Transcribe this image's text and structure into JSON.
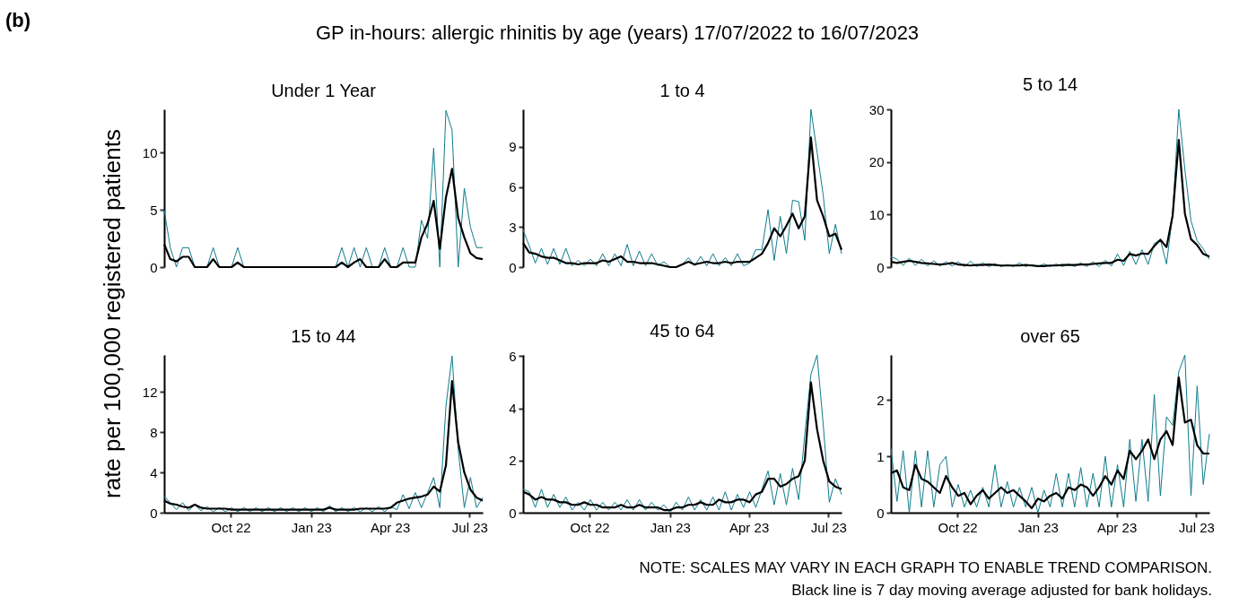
{
  "chart_data": [
    {
      "type": "line",
      "title": "Under 1 Year",
      "ylabel": "rate per 100,000 registered patients",
      "annotations": [
        "(b)",
        "GP in-hours: allergic rhinitis by age (years) 17/07/2022 to 16/07/2023"
      ],
      "tick_labels": "y",
      "ylim": [
        0,
        13.8
      ],
      "yticks": [
        0,
        5,
        10
      ],
      "categories": [
        null,
        null,
        null,
        null,
        null,
        null,
        null,
        null,
        null,
        null,
        null,
        null,
        null,
        null,
        null,
        null,
        null,
        null,
        null,
        null,
        null,
        null,
        null,
        null,
        null,
        null,
        null,
        null,
        null,
        null,
        null,
        null,
        null,
        null,
        null,
        null,
        null,
        null,
        null,
        null,
        null,
        null,
        null,
        null,
        null,
        null,
        null,
        null,
        null,
        null,
        null,
        null,
        null
      ],
      "series": [
        {
          "color": "#0e7c8c",
          "values": [
            5.0,
            1.7,
            0,
            1.7,
            1.7,
            0,
            0,
            0,
            1.7,
            0,
            0,
            0,
            1.7,
            0,
            0,
            0,
            0,
            0,
            0,
            0,
            0,
            0,
            0,
            0,
            0,
            0,
            0,
            0,
            0,
            1.7,
            0,
            1.7,
            0,
            1.7,
            0,
            0,
            1.7,
            0,
            0,
            1.7,
            0,
            0,
            4.1,
            2.5,
            10.4,
            0,
            13.7,
            12.0,
            0,
            6.9,
            3.5,
            1.7,
            1.7
          ]
        },
        {
          "color": "#000000",
          "values": [
            2.0,
            0.7,
            0.5,
            0.9,
            0.9,
            0,
            0,
            0,
            0.7,
            0,
            0,
            0,
            0.4,
            0,
            0,
            0,
            0,
            0,
            0,
            0,
            0,
            0,
            0,
            0,
            0,
            0,
            0,
            0,
            0,
            0.4,
            0,
            0.4,
            0.7,
            0,
            0,
            0,
            0.7,
            0,
            0,
            0.4,
            0.4,
            0.4,
            2.6,
            3.8,
            5.8,
            1.6,
            6.1,
            8.6,
            4.3,
            2.6,
            1.2,
            0.8,
            0.7
          ]
        }
      ]
    },
    {
      "type": "line",
      "title": "1 to 4",
      "tick_labels": "y",
      "ylim": [
        0,
        11.8
      ],
      "yticks": [
        0,
        3,
        6,
        9
      ],
      "categories": [
        null,
        null,
        null,
        null,
        null,
        null,
        null,
        null,
        null,
        null,
        null,
        null,
        null,
        null,
        null,
        null,
        null,
        null,
        null,
        null,
        null,
        null,
        null,
        null,
        null,
        null,
        null,
        null,
        null,
        null,
        null,
        null,
        null,
        null,
        null,
        null,
        null,
        null,
        null,
        null,
        null,
        null,
        null,
        null,
        null,
        null,
        null,
        null,
        null,
        null,
        null,
        null,
        null
      ],
      "series": [
        {
          "color": "#0e7c8c",
          "values": [
            2.8,
            1.6,
            0.3,
            1.4,
            0.2,
            1.4,
            0.2,
            1.4,
            0.1,
            0.5,
            0.1,
            0.6,
            0.1,
            1.0,
            0.1,
            1.0,
            0.1,
            1.7,
            0.1,
            1.2,
            0.1,
            1.0,
            0.1,
            0.4,
            0,
            0,
            0.2,
            0.7,
            0.1,
            0.8,
            0.1,
            1.0,
            0.1,
            0.7,
            0.1,
            1.0,
            0.1,
            0.3,
            1.3,
            1.3,
            4.3,
            0.5,
            3.8,
            1.0,
            5.0,
            4.9,
            2.0,
            11.8,
            8.6,
            5.4,
            1.0,
            3.2,
            1.0
          ]
        },
        {
          "color": "#000000",
          "values": [
            1.8,
            1.1,
            1.0,
            0.8,
            0.7,
            0.7,
            0.5,
            0.3,
            0.3,
            0.2,
            0.3,
            0.3,
            0.3,
            0.5,
            0.4,
            0.6,
            0.8,
            0.4,
            0.4,
            0.3,
            0.3,
            0.3,
            0.2,
            0.1,
            0,
            0,
            0.2,
            0.4,
            0.2,
            0.3,
            0.4,
            0.3,
            0.3,
            0.4,
            0.3,
            0.4,
            0.4,
            0.4,
            0.7,
            1.0,
            1.8,
            2.9,
            2.3,
            3.1,
            4.0,
            2.9,
            3.8,
            9.7,
            5.0,
            3.8,
            2.3,
            2.5,
            1.3
          ]
        }
      ]
    },
    {
      "type": "line",
      "title": "5 to 14",
      "tick_labels": "y",
      "ylim": [
        0,
        30
      ],
      "yticks": [
        0,
        10,
        20,
        30
      ],
      "categories": [
        null,
        null,
        null,
        null,
        null,
        null,
        null,
        null,
        null,
        null,
        null,
        null,
        null,
        null,
        null,
        null,
        null,
        null,
        null,
        null,
        null,
        null,
        null,
        null,
        null,
        null,
        null,
        null,
        null,
        null,
        null,
        null,
        null,
        null,
        null,
        null,
        null,
        null,
        null,
        null,
        null,
        null,
        null,
        null,
        null,
        null,
        null,
        null,
        null,
        null,
        null,
        null,
        null
      ],
      "series": [
        {
          "color": "#0e7c8c",
          "values": [
            2.0,
            1.5,
            0.3,
            1.7,
            0.3,
            1.5,
            0.2,
            1.2,
            0.2,
            1.0,
            0.2,
            1.0,
            0.1,
            1.1,
            0.1,
            0.8,
            0.1,
            0.6,
            0.1,
            0.5,
            0.1,
            0.8,
            0.1,
            0.5,
            0.1,
            0.6,
            0.1,
            0.6,
            0.1,
            0.6,
            0.1,
            0.8,
            0.1,
            1.0,
            0.1,
            1.3,
            0.2,
            2.5,
            0.3,
            3.0,
            0.5,
            3.3,
            0.5,
            4.5,
            5.2,
            0.6,
            10.0,
            30.0,
            18.5,
            8.8,
            5.0,
            3.5,
            1.5
          ]
        },
        {
          "color": "#000000",
          "values": [
            1.0,
            0.8,
            1.0,
            1.2,
            1.0,
            0.8,
            0.7,
            0.6,
            0.5,
            0.6,
            0.8,
            0.5,
            0.4,
            0.3,
            0.4,
            0.4,
            0.5,
            0.4,
            0.3,
            0.3,
            0.3,
            0.3,
            0.4,
            0.3,
            0.2,
            0.2,
            0.3,
            0.3,
            0.4,
            0.4,
            0.4,
            0.5,
            0.5,
            0.6,
            0.7,
            0.8,
            0.8,
            1.4,
            1.2,
            2.5,
            2.2,
            2.6,
            2.5,
            4.0,
            5.2,
            3.8,
            9.8,
            24.2,
            10.2,
            5.3,
            4.2,
            2.5,
            2.0
          ]
        }
      ]
    },
    {
      "type": "line",
      "title": "15 to 44",
      "xlim": [
        "2022-07-17",
        "2023-07-16"
      ],
      "ylim": [
        0,
        15.7
      ],
      "yticks": [
        0,
        4,
        8,
        12
      ],
      "xticks": [
        {
          "value": "2022-10-01",
          "label": "Oct 22"
        },
        {
          "value": "2023-01-01",
          "label": "Jan 23"
        },
        {
          "value": "2023-04-01",
          "label": "Apr 23"
        },
        {
          "value": "2023-07-01",
          "label": "Jul 23"
        }
      ],
      "x": [
        "2022-07-17",
        "2022-07-24",
        "2022-07-31",
        "2022-08-07",
        "2022-08-14",
        "2022-08-21",
        "2022-08-28",
        "2022-09-04",
        "2022-09-11",
        "2022-09-18",
        "2022-09-25",
        "2022-10-02",
        "2022-10-09",
        "2022-10-16",
        "2022-10-23",
        "2022-10-30",
        "2022-11-06",
        "2022-11-13",
        "2022-11-20",
        "2022-11-27",
        "2022-12-04",
        "2022-12-11",
        "2022-12-18",
        "2022-12-25",
        "2023-01-01",
        "2023-01-08",
        "2023-01-15",
        "2023-01-22",
        "2023-01-29",
        "2023-02-05",
        "2023-02-12",
        "2023-02-19",
        "2023-02-26",
        "2023-03-05",
        "2023-03-12",
        "2023-03-19",
        "2023-03-26",
        "2023-04-02",
        "2023-04-09",
        "2023-04-16",
        "2023-04-23",
        "2023-04-30",
        "2023-05-07",
        "2023-05-14",
        "2023-05-21",
        "2023-05-28",
        "2023-06-04",
        "2023-06-11",
        "2023-06-18",
        "2023-06-25",
        "2023-07-02",
        "2023-07-09",
        "2023-07-16"
      ],
      "series": [
        {
          "color": "#0e7c8c",
          "values": [
            1.6,
            1.0,
            0.3,
            1.0,
            0.2,
            0.8,
            0.2,
            0.6,
            0.1,
            0.5,
            0.1,
            0.5,
            0.1,
            0.5,
            0.1,
            0.5,
            0.1,
            0.5,
            0.1,
            0.5,
            0.1,
            0.5,
            0.1,
            0.5,
            0.1,
            0.5,
            0.1,
            0.7,
            0.1,
            0.5,
            0.1,
            0.5,
            0.1,
            0.5,
            0.1,
            0.6,
            0.1,
            0.6,
            0.3,
            1.8,
            0.4,
            2.0,
            0.5,
            2.0,
            3.5,
            0.5,
            10.6,
            15.6,
            6.3,
            0.5,
            3.5,
            0.5,
            1.5
          ]
        },
        {
          "color": "#000000",
          "values": [
            1.2,
            0.9,
            0.8,
            0.6,
            0.5,
            0.8,
            0.5,
            0.4,
            0.4,
            0.4,
            0.4,
            0.3,
            0.3,
            0.3,
            0.3,
            0.3,
            0.3,
            0.3,
            0.3,
            0.3,
            0.3,
            0.3,
            0.3,
            0.3,
            0.3,
            0.3,
            0.3,
            0.5,
            0.3,
            0.3,
            0.3,
            0.3,
            0.4,
            0.4,
            0.4,
            0.4,
            0.4,
            0.5,
            1.0,
            1.2,
            1.4,
            1.5,
            1.6,
            1.8,
            2.6,
            2.1,
            4.7,
            13.1,
            7.0,
            4.0,
            2.3,
            1.5,
            1.2
          ]
        }
      ]
    },
    {
      "type": "line",
      "title": "45 to 64",
      "xlim": [
        "2022-07-17",
        "2023-07-16"
      ],
      "ylim": [
        0,
        6.05
      ],
      "yticks": [
        0,
        2,
        4,
        6
      ],
      "xticks": [
        {
          "value": "2022-10-01",
          "label": "Oct 22"
        },
        {
          "value": "2023-01-01",
          "label": "Jan 23"
        },
        {
          "value": "2023-04-01",
          "label": "Apr 23"
        },
        {
          "value": "2023-07-01",
          "label": "Jul 23"
        }
      ],
      "x": [
        "2022-07-17",
        "2022-07-24",
        "2022-07-31",
        "2022-08-07",
        "2022-08-14",
        "2022-08-21",
        "2022-08-28",
        "2022-09-04",
        "2022-09-11",
        "2022-09-18",
        "2022-09-25",
        "2022-10-02",
        "2022-10-09",
        "2022-10-16",
        "2022-10-23",
        "2022-10-30",
        "2022-11-06",
        "2022-11-13",
        "2022-11-20",
        "2022-11-27",
        "2022-12-04",
        "2022-12-11",
        "2022-12-18",
        "2022-12-25",
        "2023-01-01",
        "2023-01-08",
        "2023-01-15",
        "2023-01-22",
        "2023-01-29",
        "2023-02-05",
        "2023-02-12",
        "2023-02-19",
        "2023-02-26",
        "2023-03-05",
        "2023-03-12",
        "2023-03-19",
        "2023-03-26",
        "2023-04-02",
        "2023-04-09",
        "2023-04-16",
        "2023-04-23",
        "2023-04-30",
        "2023-05-07",
        "2023-05-14",
        "2023-05-21",
        "2023-05-28",
        "2023-06-04",
        "2023-06-11",
        "2023-06-18",
        "2023-06-25",
        "2023-07-02",
        "2023-07-09",
        "2023-07-16"
      ],
      "series": [
        {
          "color": "#0e7c8c",
          "values": [
            0.9,
            0.8,
            0.2,
            0.9,
            0.2,
            0.7,
            0.2,
            0.6,
            0.1,
            0.4,
            0.1,
            0.5,
            0.1,
            0.4,
            0.1,
            0.4,
            0.1,
            0.5,
            0.1,
            0.5,
            0.1,
            0.4,
            0.1,
            0.3,
            0,
            0.4,
            0.1,
            0.6,
            0.1,
            0.5,
            0.1,
            0.6,
            0.1,
            0.8,
            0.1,
            0.7,
            0.2,
            0.8,
            0.2,
            0.9,
            1.6,
            0.3,
            1.5,
            0.3,
            1.7,
            0.5,
            3.0,
            5.3,
            6.05,
            3.4,
            0.4,
            1.3,
            0.7
          ]
        },
        {
          "color": "#000000",
          "values": [
            0.8,
            0.7,
            0.5,
            0.6,
            0.5,
            0.5,
            0.4,
            0.4,
            0.3,
            0.3,
            0.4,
            0.3,
            0.3,
            0.2,
            0.2,
            0.2,
            0.3,
            0.2,
            0.2,
            0.3,
            0.2,
            0.2,
            0.2,
            0.1,
            0.1,
            0.2,
            0.2,
            0.3,
            0.3,
            0.4,
            0.3,
            0.3,
            0.5,
            0.4,
            0.4,
            0.5,
            0.5,
            0.4,
            0.7,
            0.8,
            1.3,
            1.3,
            1.0,
            1.1,
            1.3,
            1.4,
            2.0,
            5.0,
            3.2,
            2.0,
            1.2,
            1.0,
            0.9
          ]
        }
      ]
    },
    {
      "type": "line",
      "title": "over 65",
      "annotations": [
        "NOTE: SCALES MAY VARY IN EACH GRAPH TO ENABLE TREND COMPARISON.",
        "Black line is 7 day moving average adjusted for bank holidays."
      ],
      "xlim": [
        "2022-07-17",
        "2023-07-16"
      ],
      "ylim": [
        0,
        2.8
      ],
      "yticks": [
        0,
        1,
        2
      ],
      "xticks": [
        {
          "value": "2022-10-01",
          "label": "Oct 22"
        },
        {
          "value": "2023-01-01",
          "label": "Jan 23"
        },
        {
          "value": "2023-04-01",
          "label": "Apr 23"
        },
        {
          "value": "2023-07-01",
          "label": "Jul 23"
        }
      ],
      "x": [
        "2022-07-17",
        "2022-07-24",
        "2022-07-31",
        "2022-08-07",
        "2022-08-14",
        "2022-08-21",
        "2022-08-28",
        "2022-09-04",
        "2022-09-11",
        "2022-09-18",
        "2022-09-25",
        "2022-10-02",
        "2022-10-09",
        "2022-10-16",
        "2022-10-23",
        "2022-10-30",
        "2022-11-06",
        "2022-11-13",
        "2022-11-20",
        "2022-11-27",
        "2022-12-04",
        "2022-12-11",
        "2022-12-18",
        "2022-12-25",
        "2023-01-01",
        "2023-01-08",
        "2023-01-15",
        "2023-01-22",
        "2023-01-29",
        "2023-02-05",
        "2023-02-12",
        "2023-02-19",
        "2023-02-26",
        "2023-03-05",
        "2023-03-12",
        "2023-03-19",
        "2023-03-26",
        "2023-04-02",
        "2023-04-09",
        "2023-04-16",
        "2023-04-23",
        "2023-04-30",
        "2023-05-07",
        "2023-05-14",
        "2023-05-21",
        "2023-05-28",
        "2023-06-04",
        "2023-06-11",
        "2023-06-18",
        "2023-06-25",
        "2023-07-02",
        "2023-07-09",
        "2023-07-16"
      ],
      "series": [
        {
          "color": "#0e7c8c",
          "values": [
            1.15,
            0.2,
            1.1,
            0,
            1.1,
            0.1,
            1.1,
            0.1,
            0.85,
            1.0,
            0.1,
            0.5,
            0.1,
            0.4,
            0.1,
            0.45,
            0.1,
            0.85,
            0.1,
            0.55,
            0.1,
            0.45,
            0.1,
            0.45,
            0,
            0.4,
            0.1,
            0.7,
            0.1,
            0.7,
            0.1,
            0.8,
            0.1,
            0.7,
            0.1,
            1.0,
            0.1,
            0.85,
            0.1,
            1.3,
            0.2,
            1.3,
            0.2,
            2.1,
            0.3,
            1.7,
            1.55,
            2.5,
            2.8,
            0.3,
            2.25,
            0.5,
            1.4
          ]
        },
        {
          "color": "#000000",
          "values": [
            0.7,
            0.75,
            0.45,
            0.4,
            0.85,
            0.6,
            0.55,
            0.45,
            0.35,
            0.65,
            0.45,
            0.3,
            0.35,
            0.15,
            0.3,
            0.4,
            0.25,
            0.35,
            0.45,
            0.35,
            0.4,
            0.3,
            0.2,
            0.08,
            0.25,
            0.2,
            0.3,
            0.35,
            0.25,
            0.45,
            0.4,
            0.5,
            0.45,
            0.3,
            0.45,
            0.65,
            0.5,
            0.75,
            0.6,
            1.1,
            0.95,
            1.1,
            1.3,
            0.95,
            1.3,
            1.45,
            1.2,
            2.4,
            1.6,
            1.65,
            1.2,
            1.05,
            1.05
          ]
        }
      ]
    }
  ]
}
